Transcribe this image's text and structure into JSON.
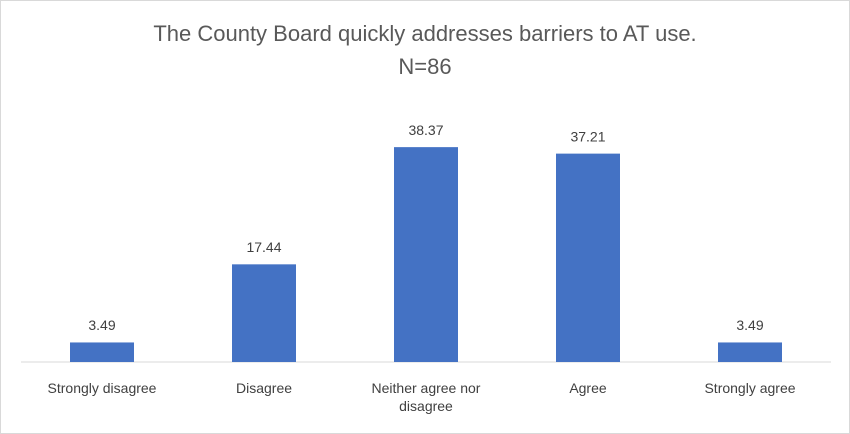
{
  "chart_data": {
    "type": "bar",
    "title": "The County Board quickly addresses barriers to AT use.",
    "subtitle": "N=86",
    "categories": [
      "Strongly disagree",
      "Disagree",
      "Neither agree nor disagree",
      "Agree",
      "Strongly agree"
    ],
    "values": [
      3.49,
      17.44,
      38.37,
      37.21,
      3.49
    ],
    "color": "#4472c4",
    "ylim": [
      0,
      40
    ]
  }
}
